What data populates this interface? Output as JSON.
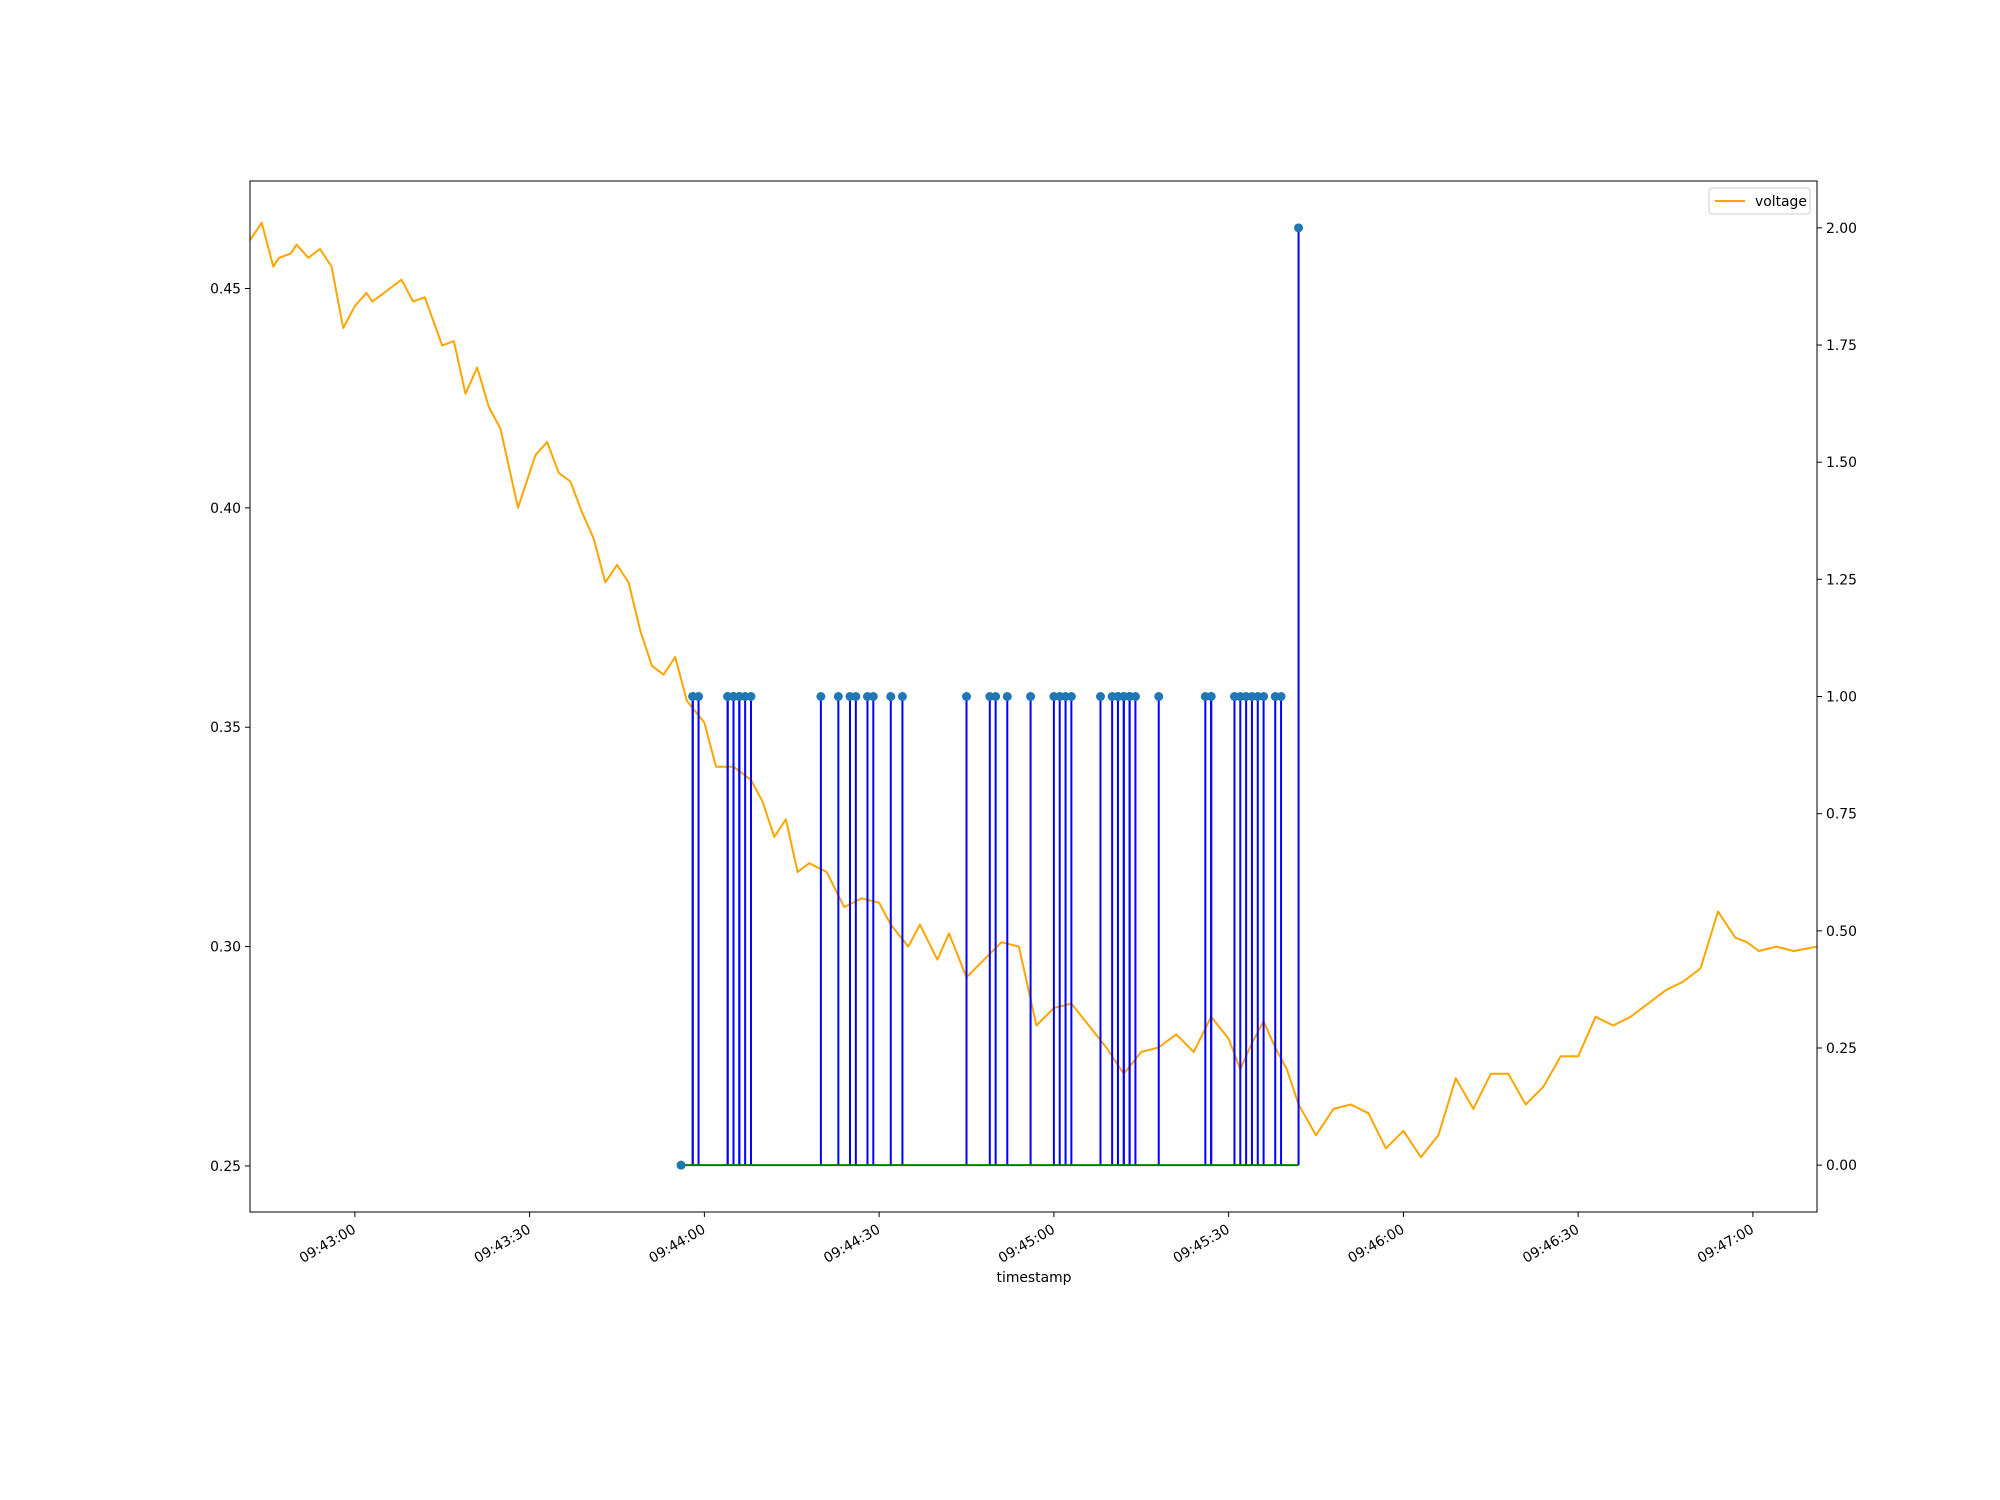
{
  "chart_data": {
    "type": "line",
    "title": "",
    "xlabel": "timestamp",
    "ylabel": "",
    "y2label": "",
    "grid": false,
    "legend": {
      "placement": "top-right",
      "entries": [
        "voltage"
      ]
    },
    "xlim": [
      "09:42:42",
      "09:47:11"
    ],
    "ylim": [
      0.2395,
      0.4745
    ],
    "y2lim": [
      -0.1,
      2.1
    ],
    "x_ticks": [
      "09:43:00",
      "09:43:30",
      "09:44:00",
      "09:44:30",
      "09:45:00",
      "09:45:30",
      "09:46:00",
      "09:46:30",
      "09:47:00"
    ],
    "y_ticks": [
      0.25,
      0.3,
      0.35,
      0.4,
      0.45
    ],
    "y_tick_labels": [
      "0.25",
      "0.30",
      "0.35",
      "0.40",
      "0.45"
    ],
    "y2_ticks": [
      0.0,
      0.25,
      0.5,
      0.75,
      1.0,
      1.25,
      1.5,
      1.75,
      2.0
    ],
    "y2_tick_labels": [
      "0.00",
      "0.25",
      "0.50",
      "0.75",
      "1.00",
      "1.25",
      "1.50",
      "1.75",
      "2.00"
    ],
    "colors": {
      "voltage": "#ffa500",
      "stems": "#0000ff",
      "markers": "#1f77b4",
      "baseline": "#008000"
    },
    "voltage": {
      "name": "voltage",
      "axis": "left",
      "x": [
        "09:42:42",
        "09:42:44",
        "09:42:46",
        "09:42:47",
        "09:42:49",
        "09:42:50",
        "09:42:52",
        "09:42:54",
        "09:42:56",
        "09:42:58",
        "09:43:00",
        "09:43:02",
        "09:43:03",
        "09:43:06",
        "09:43:08",
        "09:43:10",
        "09:43:12",
        "09:43:15",
        "09:43:17",
        "09:43:19",
        "09:43:21",
        "09:43:23",
        "09:43:25",
        "09:43:28",
        "09:43:31",
        "09:43:33",
        "09:43:35",
        "09:43:37",
        "09:43:39",
        "09:43:41",
        "09:43:43",
        "09:43:45",
        "09:43:47",
        "09:43:49",
        "09:43:51",
        "09:43:53",
        "09:43:55",
        "09:43:57",
        "09:44:00",
        "09:44:02",
        "09:44:05",
        "09:44:08",
        "09:44:10",
        "09:44:12",
        "09:44:14",
        "09:44:16",
        "09:44:18",
        "09:44:21",
        "09:44:24",
        "09:44:27",
        "09:44:30",
        "09:44:32",
        "09:44:35",
        "09:44:37",
        "09:44:40",
        "09:44:42",
        "09:44:45",
        "09:44:48",
        "09:44:51",
        "09:44:54",
        "09:44:57",
        "09:45:00",
        "09:45:03",
        "09:45:06",
        "09:45:09",
        "09:45:12",
        "09:45:15",
        "09:45:18",
        "09:45:21",
        "09:45:24",
        "09:45:27",
        "09:45:30",
        "09:45:32",
        "09:45:34",
        "09:45:36",
        "09:45:38",
        "09:45:40",
        "09:45:42",
        "09:45:45",
        "09:45:48",
        "09:45:51",
        "09:45:54",
        "09:45:57",
        "09:46:00",
        "09:46:03",
        "09:46:06",
        "09:46:09",
        "09:46:12",
        "09:46:15",
        "09:46:18",
        "09:46:21",
        "09:46:24",
        "09:46:27",
        "09:46:30",
        "09:46:33",
        "09:46:36",
        "09:46:39",
        "09:46:42",
        "09:46:45",
        "09:46:48",
        "09:46:51",
        "09:46:54",
        "09:46:57",
        "09:46:59",
        "09:47:01",
        "09:47:04",
        "09:47:07",
        "09:47:11"
      ],
      "y": [
        0.461,
        0.465,
        0.455,
        0.457,
        0.458,
        0.46,
        0.457,
        0.459,
        0.455,
        0.441,
        0.446,
        0.449,
        0.447,
        0.45,
        0.452,
        0.447,
        0.448,
        0.437,
        0.438,
        0.426,
        0.432,
        0.423,
        0.418,
        0.4,
        0.412,
        0.415,
        0.408,
        0.406,
        0.399,
        0.393,
        0.383,
        0.387,
        0.383,
        0.372,
        0.364,
        0.362,
        0.366,
        0.356,
        0.351,
        0.341,
        0.341,
        0.338,
        0.333,
        0.325,
        0.329,
        0.317,
        0.319,
        0.317,
        0.309,
        0.311,
        0.31,
        0.305,
        0.3,
        0.305,
        0.297,
        0.303,
        0.293,
        0.297,
        0.301,
        0.3,
        0.282,
        0.286,
        0.287,
        0.282,
        0.277,
        0.271,
        0.276,
        0.277,
        0.28,
        0.276,
        0.284,
        0.279,
        0.272,
        0.278,
        0.283,
        0.277,
        0.272,
        0.264,
        0.257,
        0.263,
        0.264,
        0.262,
        0.254,
        0.258,
        0.252,
        0.257,
        0.27,
        0.263,
        0.271,
        0.271,
        0.264,
        0.268,
        0.275,
        0.275,
        0.284,
        0.282,
        0.284,
        0.287,
        0.29,
        0.292,
        0.295,
        0.308,
        0.302,
        0.301,
        0.299,
        0.3,
        0.299,
        0.3
      ]
    },
    "events": {
      "axis": "right",
      "x": [
        "09:43:56",
        "09:43:58",
        "09:43:58",
        "09:43:59",
        "09:44:04",
        "09:44:04",
        "09:44:05",
        "09:44:05",
        "09:44:06",
        "09:44:06",
        "09:44:07",
        "09:44:08",
        "09:44:20",
        "09:44:23",
        "09:44:25",
        "09:44:26",
        "09:44:28",
        "09:44:29",
        "09:44:32",
        "09:44:34",
        "09:44:45",
        "09:44:49",
        "09:44:50",
        "09:44:52",
        "09:44:56",
        "09:45:00",
        "09:45:01",
        "09:45:02",
        "09:45:03",
        "09:45:08",
        "09:45:10",
        "09:45:11",
        "09:45:11",
        "09:45:12",
        "09:45:12",
        "09:45:13",
        "09:45:13",
        "09:45:14",
        "09:45:18",
        "09:45:26",
        "09:45:27",
        "09:45:27",
        "09:45:31",
        "09:45:32",
        "09:45:33",
        "09:45:34",
        "09:45:35",
        "09:45:36",
        "09:45:38",
        "09:45:39",
        "09:45:42"
      ],
      "y": [
        0,
        1,
        1,
        1,
        1,
        1,
        1,
        1,
        1,
        1,
        1,
        1,
        1,
        1,
        1,
        1,
        1,
        1,
        1,
        1,
        1,
        1,
        1,
        1,
        1,
        1,
        1,
        1,
        1,
        1,
        1,
        1,
        1,
        1,
        1,
        1,
        1,
        1,
        1,
        1,
        1,
        1,
        1,
        1,
        1,
        1,
        1,
        1,
        1,
        1,
        2
      ],
      "baseline": 0
    }
  }
}
